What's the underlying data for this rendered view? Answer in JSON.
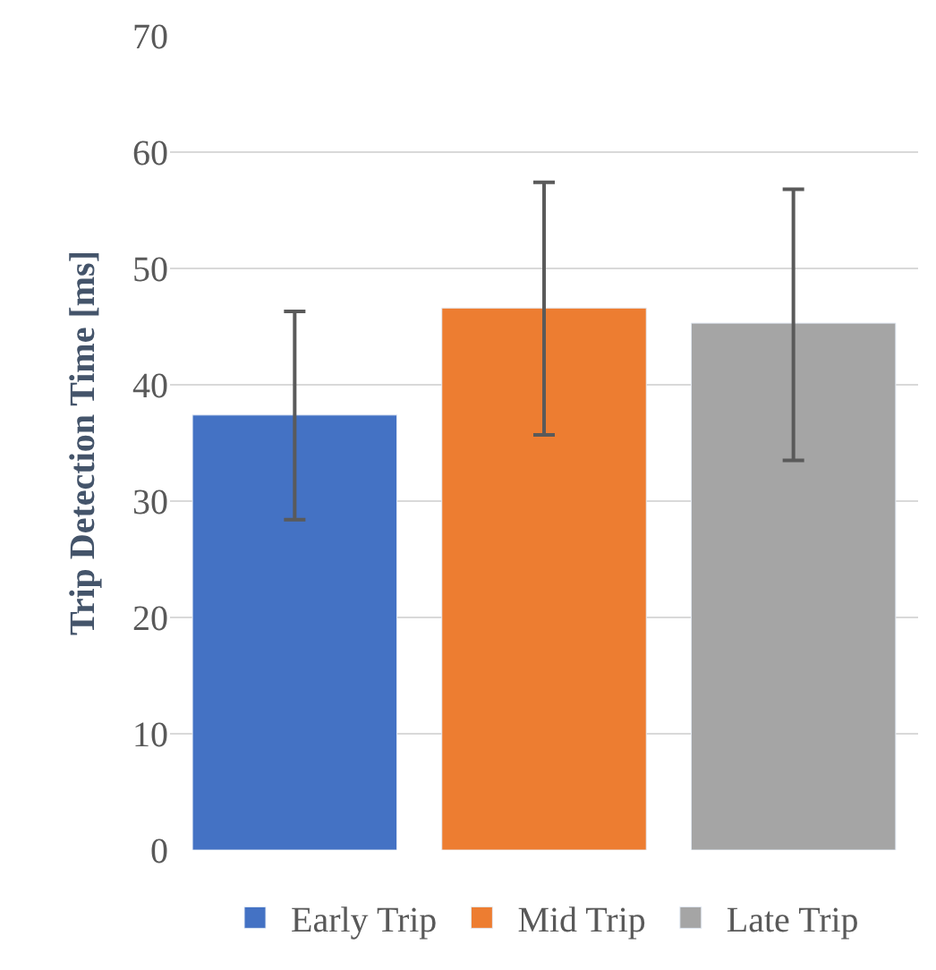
{
  "chart_data": {
    "type": "bar",
    "ylabel": "Trip Detection Time [ms]",
    "categories": [
      null,
      null,
      null
    ],
    "series": [
      {
        "name": "Early Trip",
        "color": "#4472c4",
        "values": [
          37.4,
          null,
          null
        ],
        "errors": [
          [
            28.4,
            46.3
          ],
          null,
          null
        ]
      },
      {
        "name": "Mid Trip",
        "color": "#ed7d31",
        "values": [
          null,
          46.6,
          null
        ],
        "errors": [
          null,
          [
            35.7,
            57.4
          ],
          null
        ]
      },
      {
        "name": "Late Trip",
        "color": "#a5a5a5",
        "values": [
          null,
          null,
          45.3
        ],
        "errors": [
          null,
          null,
          [
            33.5,
            56.8
          ]
        ]
      }
    ],
    "ylim": [
      0,
      70
    ],
    "yticks": [
      0,
      10,
      20,
      30,
      40,
      50,
      60,
      70
    ],
    "grid": "y",
    "legend": "bottom"
  }
}
